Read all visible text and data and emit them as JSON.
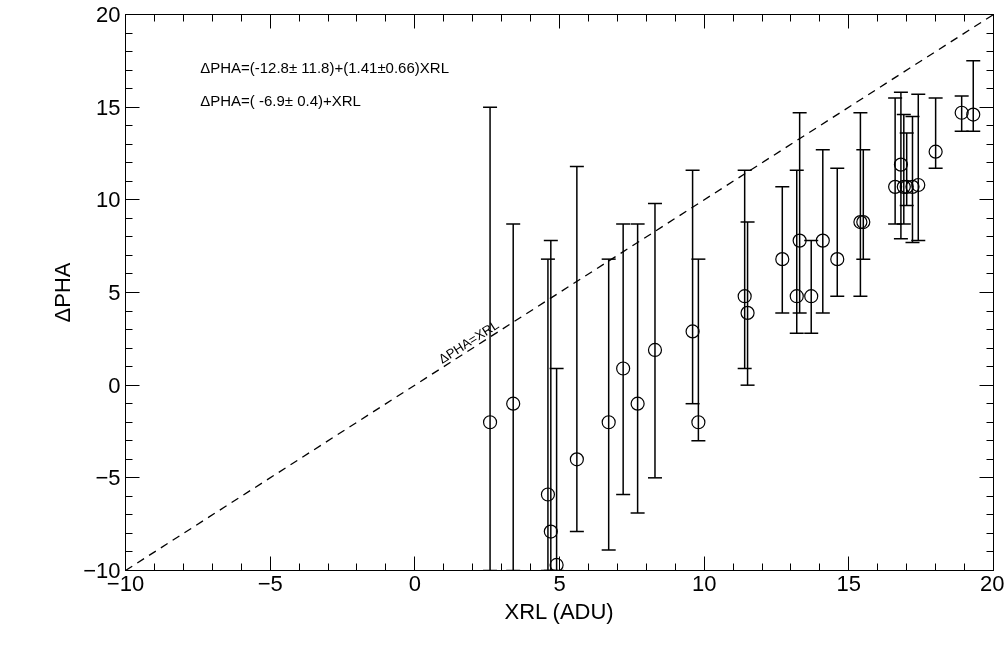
{
  "chart_data": {
    "type": "scatter",
    "xlabel": "XRL (ADU)",
    "ylabel": "ΔPHA",
    "annotations": [
      "ΔPHA=(-12.8± 11.8)+(1.41±0.66)XRL",
      "ΔPHA=( -6.9±  0.4)+XRL"
    ],
    "xlim": [
      -10,
      20
    ],
    "ylim": [
      -10,
      20
    ],
    "xticks": [
      -10,
      -5,
      0,
      5,
      10,
      15,
      20
    ],
    "yticks": [
      -10,
      -5,
      0,
      5,
      10,
      15,
      20
    ],
    "grid": false,
    "series": [
      {
        "type": "line",
        "name": "ΔPHA=XRL",
        "color": "#000000",
        "line_style": "dashed",
        "marker": "none",
        "x": [
          -10,
          20
        ],
        "values": [
          -10,
          20
        ]
      },
      {
        "marker": "circle",
        "color": "#000000",
        "x": [
          2.6,
          3.4,
          4.6,
          4.7,
          4.9,
          5.6,
          6.7,
          7.2,
          7.7,
          8.3,
          9.6,
          9.8,
          11.4,
          11.5,
          12.7,
          13.2,
          13.3,
          13.7,
          14.1,
          14.6,
          15.4,
          15.5,
          16.6,
          16.8,
          16.9,
          17.0,
          17.2,
          17.4,
          18.0,
          18.9,
          19.3
        ],
        "values": [
          -2,
          -1,
          -5.9,
          -7.9,
          -9.7,
          -4,
          -2,
          0.9,
          -1,
          1.9,
          2.9,
          -2,
          4.8,
          3.9,
          6.8,
          4.8,
          7.8,
          4.8,
          7.8,
          6.8,
          8.8,
          8.8,
          10.7,
          11.9,
          10.7,
          10.7,
          10.7,
          10.8,
          12.6,
          14.7,
          14.6
        ],
        "errors": [
          [
            -10,
            15.0
          ],
          [
            -10,
            8.7
          ],
          [
            -10,
            6.8
          ],
          [
            -10,
            7.8
          ],
          [
            -10,
            0.9
          ],
          [
            -7.9,
            11.8
          ],
          [
            -8.9,
            6.8
          ],
          [
            -5.9,
            8.7
          ],
          [
            -6.9,
            8.7
          ],
          [
            -5,
            9.8
          ],
          [
            -1,
            11.6
          ],
          [
            -3,
            6.8
          ],
          [
            0.9,
            11.6
          ],
          [
            0,
            8.8
          ],
          [
            3.9,
            10.7
          ],
          [
            2.8,
            11.6
          ],
          [
            3.9,
            14.7
          ],
          [
            2.8,
            7.8
          ],
          [
            3.9,
            12.7
          ],
          [
            4.8,
            11.7
          ],
          [
            4.8,
            14.7
          ],
          [
            6.8,
            12.7
          ],
          [
            8.7,
            15.5
          ],
          [
            7.9,
            15.8
          ],
          [
            8.7,
            14.6
          ],
          [
            9.7,
            13.6
          ],
          [
            7.7,
            14.5
          ],
          [
            7.8,
            15.7
          ],
          [
            11.7,
            15.5
          ],
          [
            13.7,
            15.6
          ],
          [
            13.7,
            17.5
          ]
        ]
      }
    ]
  }
}
